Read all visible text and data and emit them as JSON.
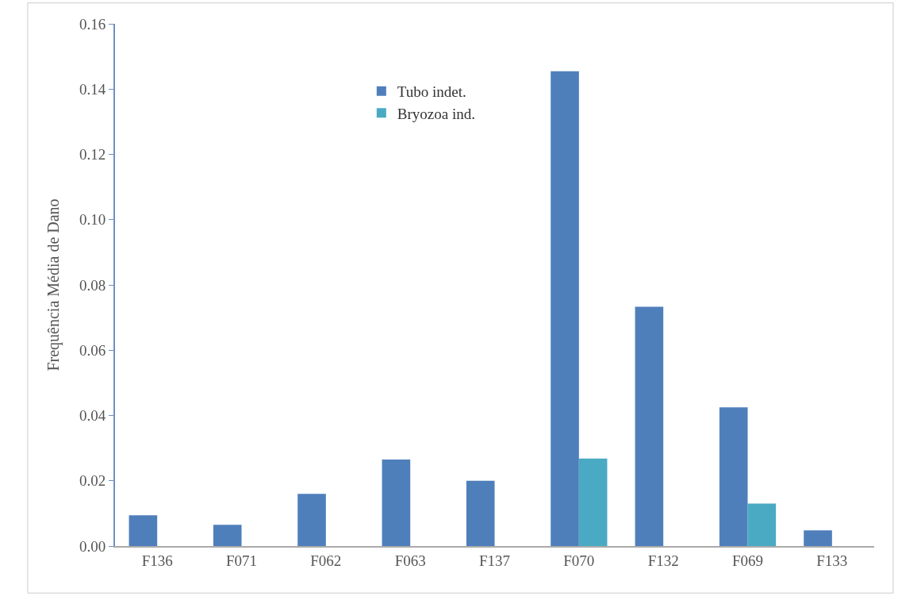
{
  "chart_data": {
    "type": "bar",
    "ylabel": "Frequência Média de Dano",
    "categories": [
      "F136",
      "F071",
      "F062",
      "F063",
      "F137",
      "F070",
      "F132",
      "F069",
      "F133"
    ],
    "series": [
      {
        "name": "Tubo indet.",
        "color": "#4f7fbb",
        "values": [
          0.0094,
          0.0065,
          0.016,
          0.0265,
          0.02,
          0.1455,
          0.0733,
          0.0425,
          0.0048
        ]
      },
      {
        "name": "Bryozoa ind.",
        "color": "#4aaac4",
        "values": [
          null,
          null,
          null,
          null,
          null,
          0.0268,
          null,
          0.013,
          null
        ]
      }
    ],
    "ylim": [
      0,
      0.16
    ],
    "yticks": [
      {
        "value": 0,
        "label": "0.00"
      },
      0.02,
      0.04,
      0.06,
      0.08,
      {
        "value": 0.1,
        "label": "0.10"
      },
      0.12,
      0.14,
      0.16
    ],
    "legend": "top"
  }
}
